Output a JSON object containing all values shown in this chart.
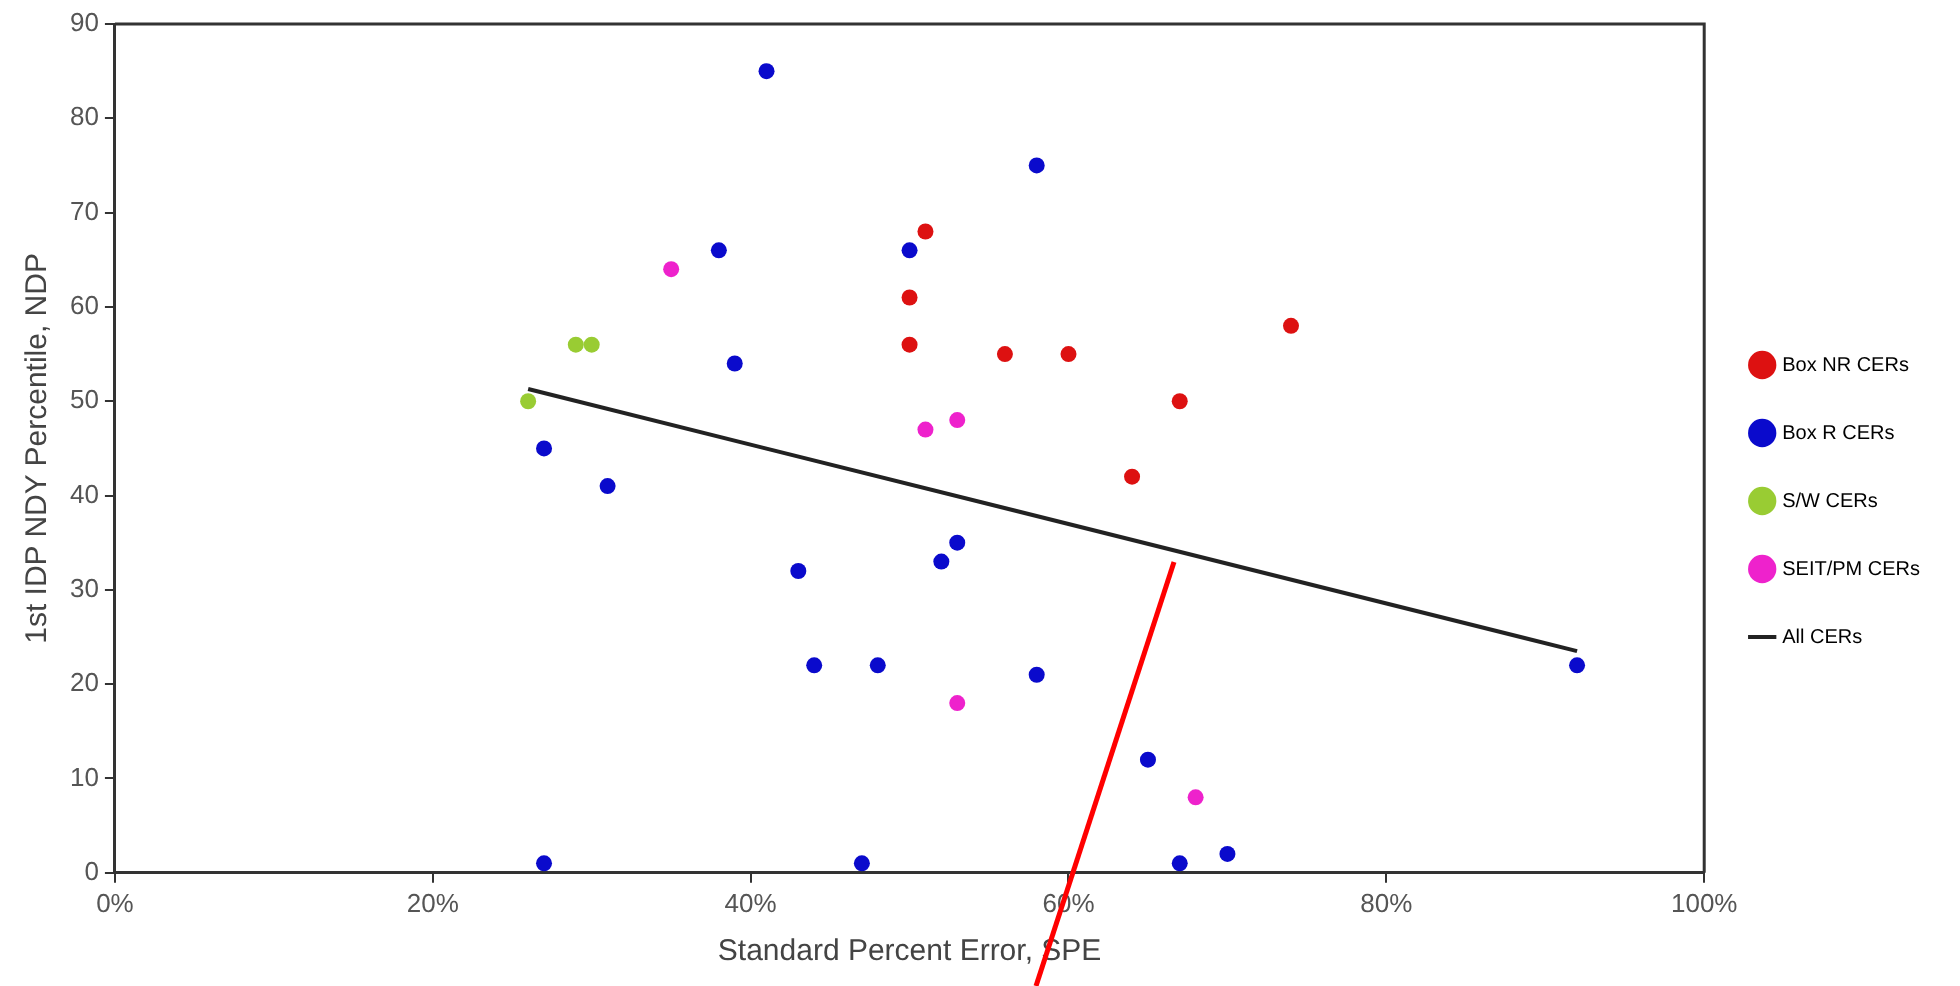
{
  "chart_data": {
    "type": "scatter",
    "xlabel": "Standard Percent Error, SPE",
    "ylabel": "1st IDP NDY Percentile, NDP",
    "xlim": [
      0,
      100
    ],
    "xticks": [
      {
        "value": 0,
        "label": "0%"
      },
      {
        "value": 20,
        "label": "20%"
      },
      {
        "value": 40,
        "label": "40%"
      },
      {
        "value": 60,
        "label": "60%"
      },
      {
        "value": 80,
        "label": "80%"
      },
      {
        "value": 100,
        "label": "100%"
      }
    ],
    "ylim": [
      0,
      90
    ],
    "yticks": [
      0,
      10,
      20,
      30,
      40,
      50,
      60,
      70,
      80,
      90
    ],
    "grid": false,
    "legend": "right",
    "marker": "circle",
    "series": [
      {
        "name": "Box NR CERs",
        "color": "#dd1111",
        "x": [
          51,
          50,
          50,
          56,
          60,
          67,
          74,
          64
        ],
        "values": [
          68,
          61,
          56,
          55,
          55,
          50,
          58,
          42
        ]
      },
      {
        "name": "Box R CERs",
        "color": "#0a0acc",
        "x": [
          41,
          58,
          38,
          50,
          39,
          27,
          31,
          43,
          52,
          53,
          44,
          48,
          58,
          65,
          92,
          27,
          47,
          67,
          70
        ],
        "values": [
          85,
          75,
          66,
          66,
          54,
          45,
          41,
          32,
          33,
          35,
          22,
          22,
          21,
          12,
          22,
          1,
          1,
          1,
          2
        ]
      },
      {
        "name": "S/W CERs",
        "color": "#99cc33",
        "x": [
          26,
          29,
          30
        ],
        "values": [
          50,
          56,
          56
        ]
      },
      {
        "name": "SEIT/PM CERs",
        "color": "#ee22cc",
        "x": [
          35,
          51,
          53,
          53,
          68
        ],
        "values": [
          64,
          47,
          48,
          18,
          8
        ]
      },
      {
        "name": "All CERs",
        "type": "line",
        "color": "#222222",
        "marker": "none",
        "line_style": "solid",
        "x": [
          26,
          92
        ],
        "values": [
          51.3,
          23.5
        ]
      }
    ]
  }
}
